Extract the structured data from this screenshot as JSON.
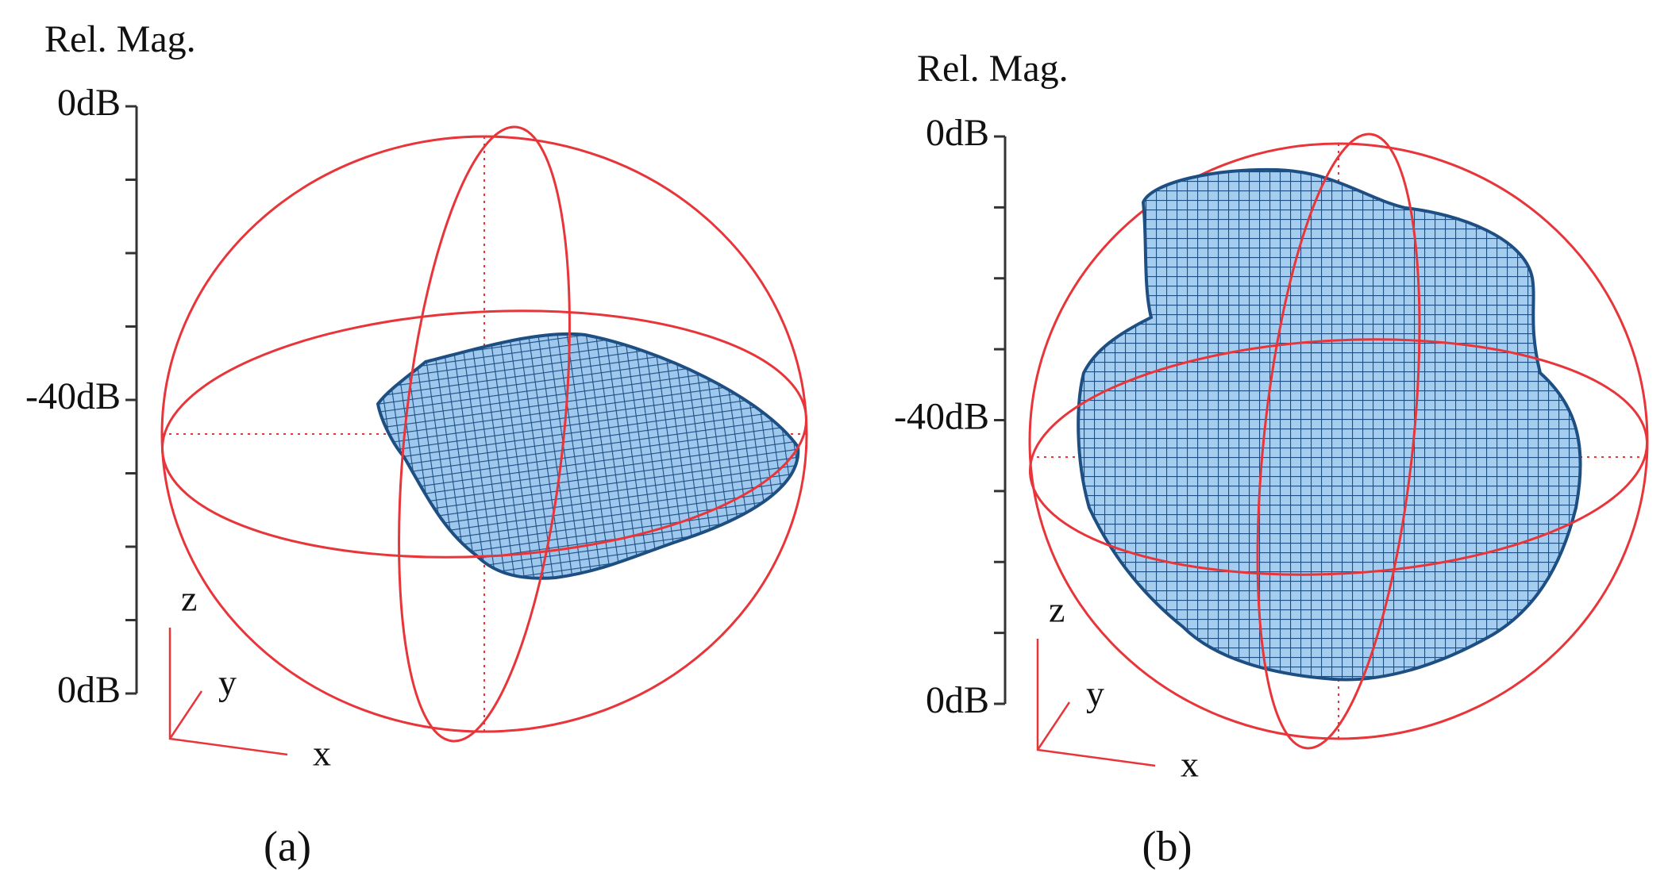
{
  "panels": [
    {
      "axis_title": "Rel. Mag.",
      "ticks": [
        "0dB",
        "-40dB",
        "0dB"
      ],
      "axes": {
        "z": "z",
        "y": "y",
        "x": "x"
      },
      "caption": "(a)"
    },
    {
      "axis_title": "Rel. Mag.",
      "ticks": [
        "0dB",
        "-40dB",
        "0dB"
      ],
      "axes": {
        "z": "z",
        "y": "y",
        "x": "x"
      },
      "caption": "(b)"
    }
  ]
}
